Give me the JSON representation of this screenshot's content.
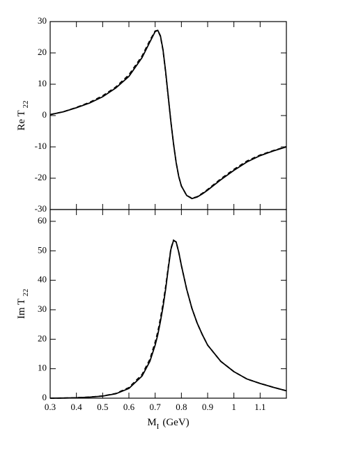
{
  "chart_data": [
    {
      "type": "line",
      "ylabel": "Re T",
      "ylabel_sub": "22",
      "x": [
        0.3,
        0.35,
        0.4,
        0.45,
        0.5,
        0.55,
        0.6,
        0.65,
        0.68,
        0.7,
        0.71,
        0.72,
        0.73,
        0.74,
        0.75,
        0.76,
        0.77,
        0.78,
        0.79,
        0.8,
        0.82,
        0.84,
        0.86,
        0.88,
        0.9,
        0.95,
        1.0,
        1.05,
        1.1,
        1.15,
        1.2
      ],
      "series": [
        {
          "color": "#000000",
          "dash": "solid",
          "values": [
            0.3,
            1.2,
            2.5,
            4,
            6,
            8.8,
            12.5,
            18.5,
            23.5,
            26.8,
            27.2,
            25.5,
            21,
            14,
            6,
            -2,
            -9,
            -15,
            -19.5,
            -22.5,
            -25.5,
            -26.5,
            -26,
            -25,
            -23.8,
            -20.5,
            -17.5,
            -14.8,
            -12.8,
            -11.3,
            -10
          ]
        },
        {
          "color": "#000000",
          "dash": "dashed",
          "values": [
            0.3,
            1.2,
            2.6,
            4.2,
            6.3,
            9.1,
            13,
            19,
            24,
            27,
            27.2,
            25.3,
            20.8,
            13.8,
            5.9,
            -2,
            -9,
            -15,
            -19.5,
            -22.5,
            -25.5,
            -26.4,
            -25.9,
            -24.8,
            -23.6,
            -20.2,
            -17.2,
            -14.5,
            -12.6,
            -11.2,
            -9.9
          ]
        }
      ],
      "xlim": [
        0.3,
        1.2
      ],
      "ylim": [
        -30,
        30
      ],
      "yticks": [
        -30,
        -20,
        -10,
        0,
        10,
        20,
        30
      ]
    },
    {
      "type": "line",
      "ylabel": "Im T",
      "ylabel_sub": "22",
      "xlabel": "M",
      "xlabel_sub": "I",
      "xlabel_unit": "(GeV)",
      "x": [
        0.3,
        0.35,
        0.4,
        0.45,
        0.5,
        0.55,
        0.6,
        0.65,
        0.68,
        0.7,
        0.71,
        0.72,
        0.73,
        0.74,
        0.75,
        0.76,
        0.77,
        0.78,
        0.79,
        0.8,
        0.82,
        0.84,
        0.86,
        0.88,
        0.9,
        0.95,
        1.0,
        1.05,
        1.1,
        1.15,
        1.2
      ],
      "series": [
        {
          "color": "#000000",
          "dash": "solid",
          "values": [
            0,
            0.05,
            0.15,
            0.35,
            0.7,
            1.5,
            3.3,
            7.5,
            12.5,
            18,
            21.5,
            26,
            31,
            37,
            44,
            50.5,
            53.5,
            53,
            49.5,
            45,
            37,
            30.5,
            25.5,
            21.5,
            18,
            12.5,
            9,
            6.5,
            5,
            3.7,
            2.5
          ]
        },
        {
          "color": "#000000",
          "dash": "dashed",
          "values": [
            0,
            0.05,
            0.16,
            0.38,
            0.75,
            1.6,
            3.6,
            8,
            13.2,
            19,
            22.5,
            27,
            32,
            37.8,
            44.5,
            50.8,
            53.6,
            53,
            49.5,
            45,
            37,
            30.5,
            25.5,
            21.5,
            18,
            12.5,
            9,
            6.5,
            5,
            3.7,
            2.5
          ]
        }
      ],
      "xlim": [
        0.3,
        1.2
      ],
      "xticks": [
        0.3,
        0.4,
        0.5,
        0.6,
        0.7,
        0.8,
        0.9,
        1,
        1.1
      ],
      "ylim": [
        0,
        64
      ],
      "yticks": [
        0,
        10,
        20,
        30,
        40,
        50,
        60
      ]
    }
  ]
}
